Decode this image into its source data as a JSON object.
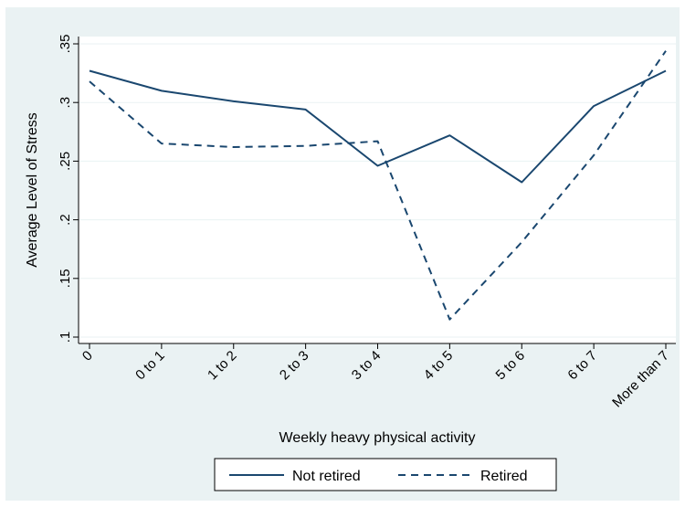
{
  "chart_data": {
    "type": "line",
    "title": "",
    "xlabel": "Weekly heavy physical activity",
    "ylabel": "Average Level of Stress",
    "categories": [
      "0",
      "0 to 1",
      "1 to 2",
      "2 to 3",
      "3 to 4",
      "4 to 5",
      "5 to 6",
      "6 to 7",
      "More than 7"
    ],
    "yticks": [
      0.1,
      0.15,
      0.2,
      0.25,
      0.3,
      0.35
    ],
    "ytick_labels": [
      ".1",
      ".15",
      ".2",
      ".25",
      ".3",
      ".35"
    ],
    "ylim": [
      0.1,
      0.35
    ],
    "grid": true,
    "legend_position": "bottom",
    "series": [
      {
        "name": "Not retired",
        "style": "solid",
        "color": "#1a476f",
        "values": [
          0.327,
          0.31,
          0.301,
          0.294,
          0.246,
          0.272,
          0.232,
          0.297,
          0.327
        ]
      },
      {
        "name": "Retired",
        "style": "dashed",
        "color": "#1a476f",
        "values": [
          0.318,
          0.265,
          0.262,
          0.263,
          0.267,
          0.115,
          0.181,
          0.255,
          0.344
        ]
      }
    ]
  }
}
